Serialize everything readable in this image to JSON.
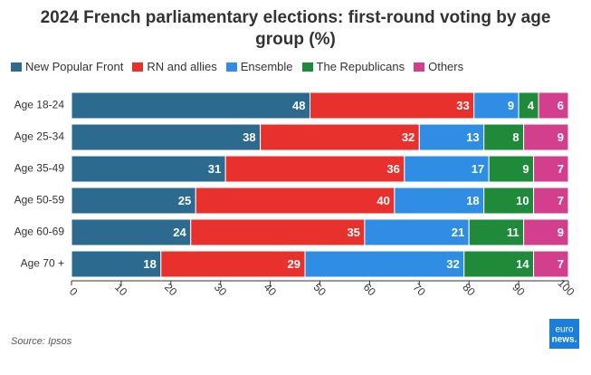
{
  "chart_data": {
    "type": "stacked-bar-horizontal",
    "title": "2024 French parliamentary elections: first-round voting by age group (%)",
    "categories": [
      "Age 18-24",
      "Age 25-34",
      "Age 35-49",
      "Age 50-59",
      "Age 60-69",
      "Age 70 +"
    ],
    "series": [
      {
        "name": "New Popular Front",
        "color": "#2d6a8f",
        "values": [
          48,
          38,
          31,
          25,
          24,
          18
        ]
      },
      {
        "name": "RN and allies",
        "color": "#e8312c",
        "values": [
          33,
          32,
          36,
          40,
          35,
          29
        ]
      },
      {
        "name": "Ensemble",
        "color": "#2f8de4",
        "values": [
          9,
          13,
          17,
          18,
          21,
          32
        ]
      },
      {
        "name": "The Republicans",
        "color": "#1f8a3a",
        "values": [
          4,
          8,
          9,
          10,
          11,
          14
        ]
      },
      {
        "name": "Others",
        "color": "#d43f8d",
        "values": [
          6,
          9,
          7,
          7,
          9,
          7
        ]
      }
    ],
    "xlim": [
      0,
      100
    ],
    "xticks": [
      0,
      10,
      20,
      30,
      40,
      50,
      60,
      70,
      80,
      90,
      100
    ],
    "grid": false,
    "source": "Source: Ipsos"
  },
  "logo": {
    "top": "euro",
    "bottom": "news."
  }
}
